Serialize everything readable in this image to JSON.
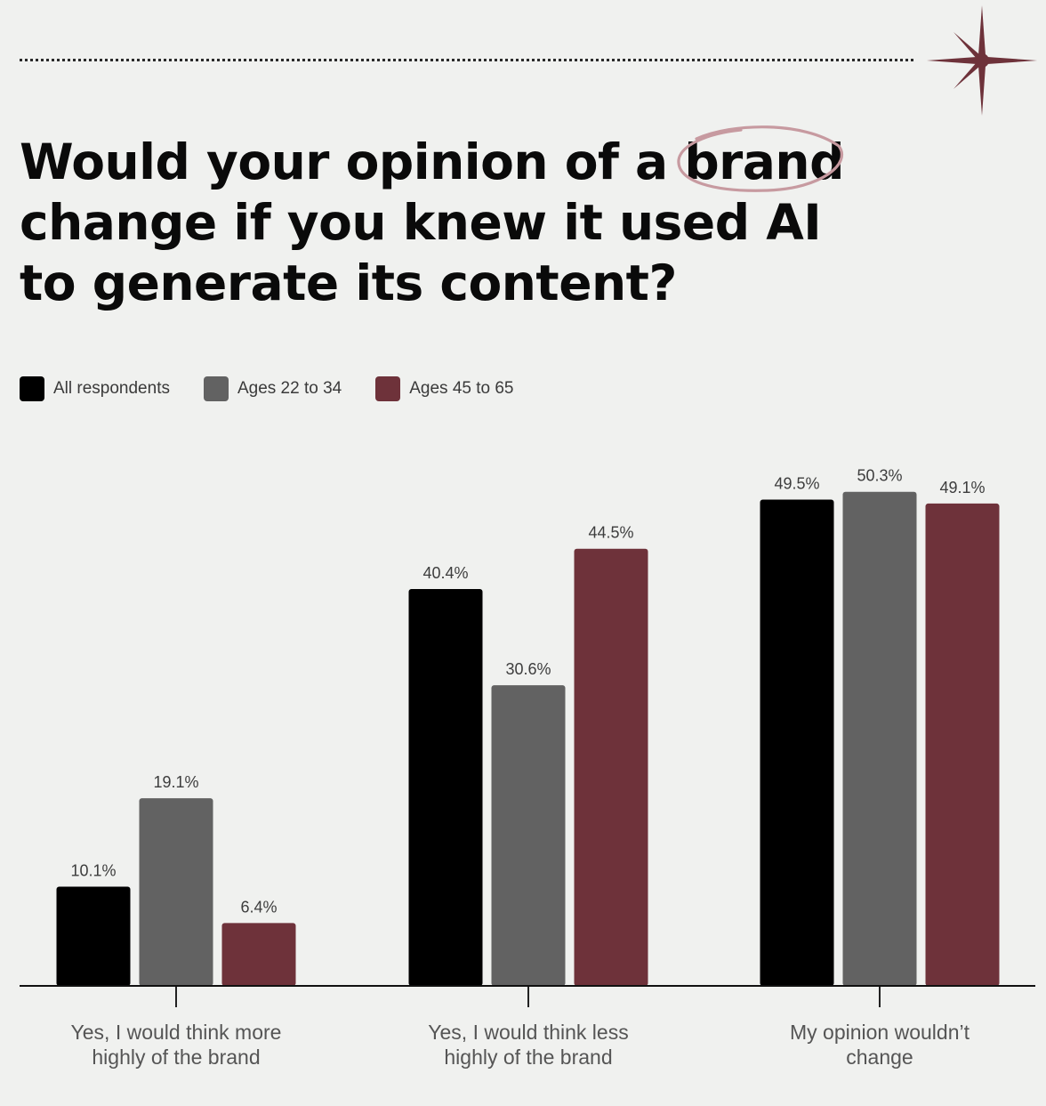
{
  "title": {
    "before": "Would your opinion of a ",
    "highlight": "brand",
    "after": " change if you knew it used AI to generate its content?"
  },
  "colors": {
    "background": "#f0f1ef",
    "all_respondents": "#000000",
    "ages_22_34": "#626262",
    "ages_45_65": "#6e323a",
    "accent": "#6e323a"
  },
  "chart_data": {
    "type": "bar",
    "categories": [
      [
        "Yes, I would think more",
        "highly of the brand"
      ],
      [
        "Yes, I would think less",
        "highly of the brand"
      ],
      [
        "My opinion wouldn’t",
        "change"
      ]
    ],
    "series": [
      {
        "name": "All respondents",
        "values": [
          10.1,
          40.4,
          49.5
        ],
        "labels": [
          "10.1%",
          "40.4%",
          "49.5%"
        ],
        "color": "#000000"
      },
      {
        "name": "Ages 22 to 34",
        "values": [
          19.1,
          30.6,
          50.3
        ],
        "labels": [
          "19.1%",
          "30.6%",
          "50.3%"
        ],
        "color": "#626262"
      },
      {
        "name": "Ages 45 to 65",
        "values": [
          6.4,
          44.5,
          49.1
        ],
        "labels": [
          "6.4%",
          "44.5%",
          "49.1%"
        ],
        "color": "#6e323a"
      }
    ],
    "ylim": [
      0,
      55
    ],
    "legend_position": "top-left",
    "grid": false
  }
}
